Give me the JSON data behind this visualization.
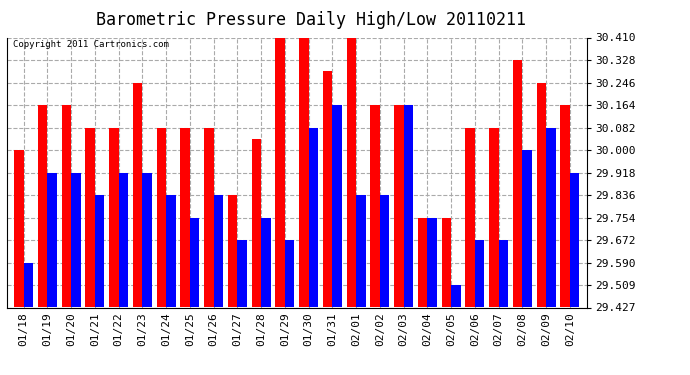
{
  "title": "Barometric Pressure Daily High/Low 20110211",
  "copyright": "Copyright 2011 Cartronics.com",
  "categories": [
    "01/18",
    "01/19",
    "01/20",
    "01/21",
    "01/22",
    "01/23",
    "01/24",
    "01/25",
    "01/26",
    "01/27",
    "01/28",
    "01/29",
    "01/30",
    "01/31",
    "02/01",
    "02/02",
    "02/03",
    "02/04",
    "02/05",
    "02/06",
    "02/07",
    "02/08",
    "02/09",
    "02/10"
  ],
  "highs": [
    30.0,
    30.164,
    30.164,
    30.082,
    30.082,
    30.246,
    30.082,
    30.082,
    30.082,
    29.836,
    30.041,
    30.41,
    30.41,
    30.287,
    30.41,
    30.164,
    30.164,
    29.754,
    29.754,
    30.082,
    30.082,
    30.328,
    30.246,
    30.164
  ],
  "lows": [
    29.59,
    29.918,
    29.918,
    29.836,
    29.918,
    29.918,
    29.836,
    29.754,
    29.836,
    29.672,
    29.754,
    29.672,
    30.082,
    30.164,
    29.836,
    29.836,
    30.164,
    29.754,
    29.509,
    29.672,
    29.672,
    30.0,
    30.082,
    29.918
  ],
  "high_color": "#ff0000",
  "low_color": "#0000ff",
  "bg_color": "#ffffff",
  "plot_bg_color": "#ffffff",
  "grid_color": "#aaaaaa",
  "ymin": 29.427,
  "ymax": 30.41,
  "yticks": [
    29.427,
    29.509,
    29.59,
    29.672,
    29.754,
    29.836,
    29.918,
    30.0,
    30.082,
    30.164,
    30.246,
    30.328,
    30.41
  ],
  "title_fontsize": 12,
  "tick_fontsize": 8,
  "bar_width": 0.4
}
